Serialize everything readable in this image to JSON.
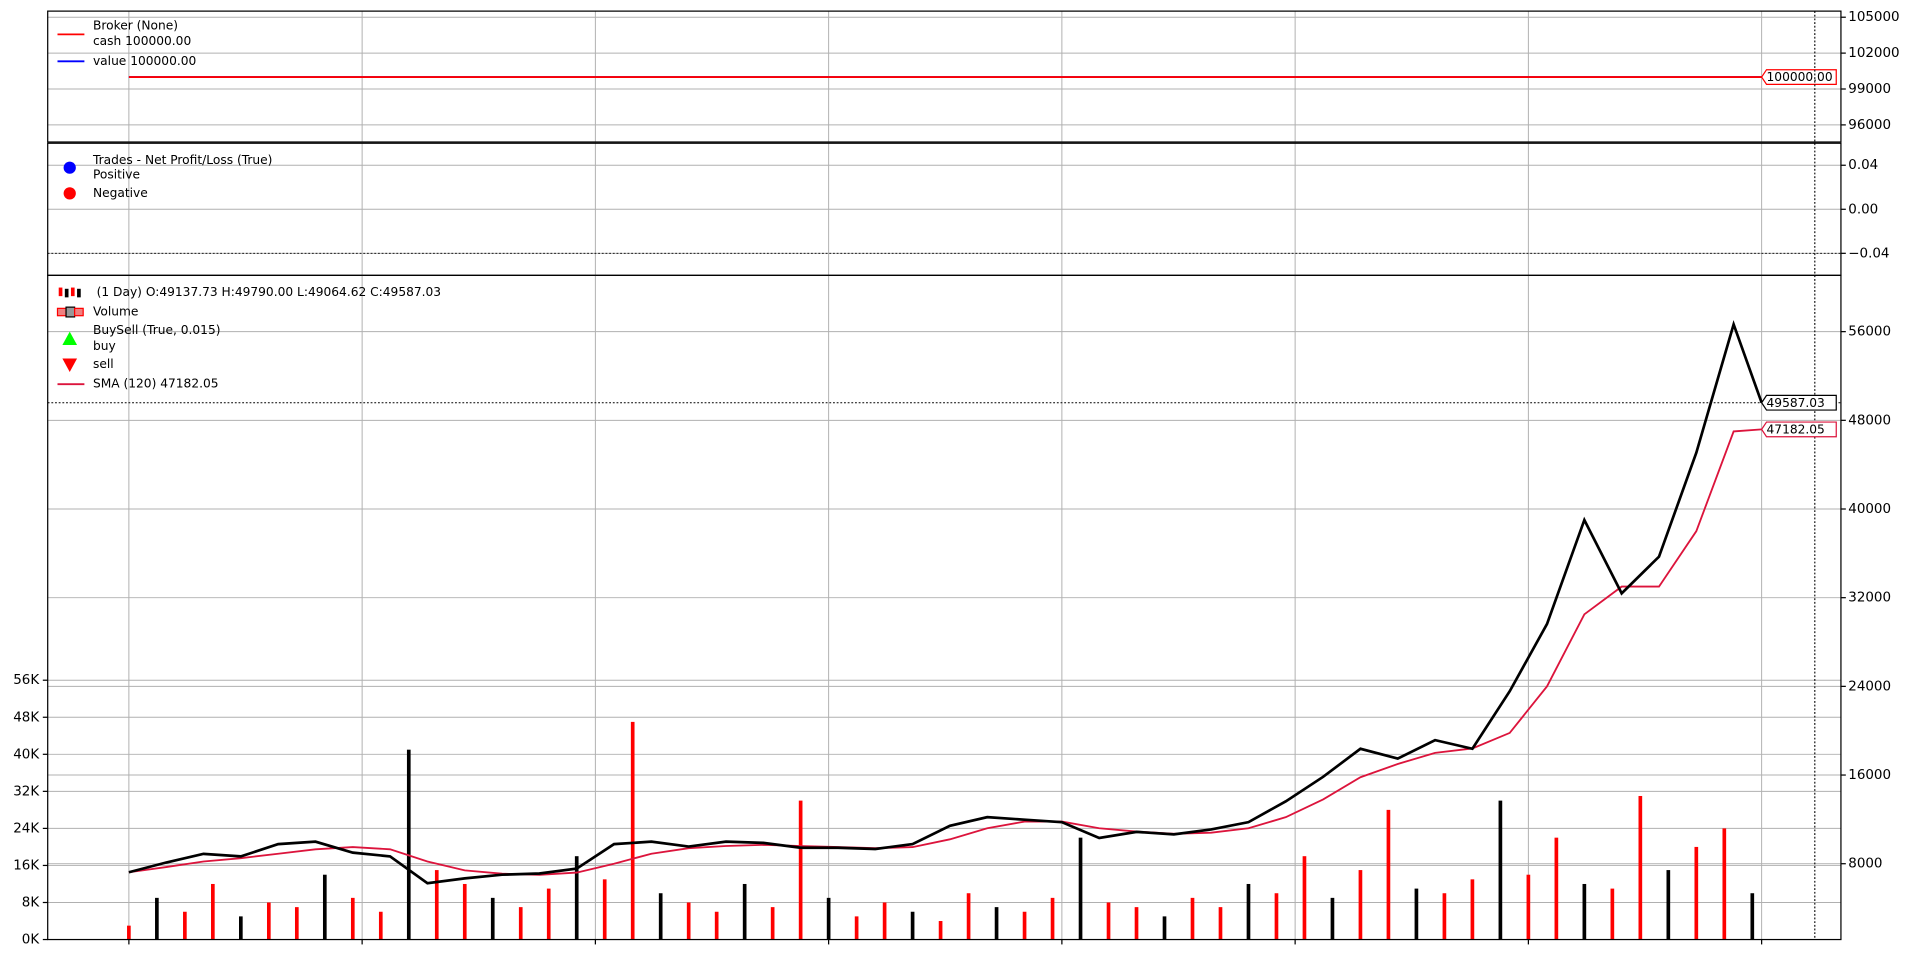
{
  "chart_data": [
    {
      "type": "line",
      "title": "Broker (None)",
      "x": [
        0,
        1750
      ],
      "xlim": [
        -87,
        1835
      ],
      "xticks": [
        0,
        250,
        500,
        750,
        1000,
        1250,
        1500,
        1750
      ],
      "ylim": [
        94570,
        105510
      ],
      "yticks": [
        96000,
        99000,
        102000,
        105000
      ],
      "grid": true,
      "series": [
        {
          "name": "cash 100000.00",
          "color": "#ff0000",
          "marker": "line",
          "values": [
            100000,
            100000
          ],
          "value_labels": [
            null,
            "100000.00"
          ]
        },
        {
          "name": "value 100000.00",
          "color": "#0000ff",
          "marker": "line",
          "values": [
            100000,
            100000
          ]
        }
      ]
    },
    {
      "type": "scatter",
      "title": "Trades - Net Profit/Loss (True)",
      "xlim": [
        -87,
        1835
      ],
      "xticks": [
        0,
        250,
        500,
        750,
        1000,
        1250,
        1500,
        1750
      ],
      "ylim": [
        -0.06,
        0.06
      ],
      "yticks": [
        {
          "value": -0.04,
          "label": "−0.04"
        },
        {
          "value": 0,
          "label": "0.00"
        },
        0.04
      ],
      "hlines": [
        -0.04
      ],
      "grid": true,
      "series": [
        {
          "name": "Positive",
          "color": "#0000ff",
          "marker": "circle",
          "values": []
        },
        {
          "name": "Negative",
          "color": "#ff0000",
          "marker": "circle",
          "values": []
        }
      ]
    },
    {
      "type": "line",
      "xlim": [
        -87,
        1835
      ],
      "xticks": [
        0,
        250,
        500,
        750,
        1000,
        1250,
        1500,
        1750
      ],
      "ylim": [
        1160,
        61080
      ],
      "yticks": [
        8000,
        16000,
        24000,
        32000,
        40000,
        48000,
        56000
      ],
      "y2lim": [
        0,
        143430
      ],
      "y2ticks": [
        {
          "value": 0,
          "label": "0K"
        },
        {
          "value": 8000,
          "label": "8K"
        },
        {
          "value": 16000,
          "label": "16K"
        },
        {
          "value": 24000,
          "label": "24K"
        },
        {
          "value": 32000,
          "label": "32K"
        },
        {
          "value": 40000,
          "label": "40K"
        },
        {
          "value": 48000,
          "label": "48K"
        },
        {
          "value": 56000,
          "label": "56K"
        }
      ],
      "grid": true,
      "vline": 1807,
      "close_line": true,
      "series": [
        {
          "name": "(1 Day) O:49137.73 H:49790.00 L:49064.62 C:49587.03",
          "color": "#000000",
          "marker": "candle",
          "x": [
            0,
            40,
            80,
            120,
            160,
            200,
            240,
            280,
            320,
            360,
            400,
            440,
            480,
            520,
            560,
            600,
            640,
            680,
            720,
            760,
            800,
            840,
            880,
            920,
            960,
            1000,
            1040,
            1080,
            1120,
            1160,
            1200,
            1240,
            1280,
            1320,
            1360,
            1400,
            1440,
            1480,
            1520,
            1560,
            1600,
            1640,
            1680,
            1720,
            1750
          ],
          "values": [
            7230,
            8110,
            8890,
            8660,
            9770,
            9990,
            9000,
            8660,
            6240,
            6680,
            7010,
            7120,
            7560,
            9770,
            9990,
            9550,
            9990,
            9880,
            9440,
            9440,
            9330,
            9770,
            11420,
            12200,
            11970,
            11750,
            10320,
            10870,
            10650,
            11090,
            11750,
            13630,
            15840,
            18370,
            17490,
            19150,
            18370,
            23560,
            29630,
            39010,
            32390,
            35700,
            45080,
            56660,
            49587.03
          ],
          "value_labels": [
            null,
            null,
            null,
            null,
            null,
            null,
            null,
            null,
            null,
            null,
            null,
            null,
            null,
            null,
            null,
            null,
            null,
            null,
            null,
            null,
            null,
            null,
            null,
            null,
            null,
            null,
            null,
            null,
            null,
            null,
            null,
            null,
            null,
            null,
            null,
            null,
            null,
            null,
            null,
            null,
            null,
            null,
            null,
            null,
            "49587.03"
          ]
        },
        {
          "name": "Volume",
          "color": "#ff0000",
          "marker": "bar",
          "axis": "y2",
          "x": [
            0,
            30,
            60,
            90,
            120,
            150,
            180,
            210,
            240,
            270,
            300,
            330,
            360,
            390,
            420,
            450,
            480,
            510,
            540,
            570,
            600,
            630,
            660,
            690,
            720,
            750,
            780,
            810,
            840,
            870,
            900,
            930,
            960,
            990,
            1020,
            1050,
            1080,
            1110,
            1140,
            1170,
            1200,
            1230,
            1260,
            1290,
            1320,
            1350,
            1380,
            1410,
            1440,
            1470,
            1500,
            1530,
            1560,
            1590,
            1620,
            1650,
            1680,
            1710,
            1740
          ],
          "values": [
            3000,
            9000,
            6000,
            12000,
            5000,
            8000,
            7000,
            14000,
            9000,
            6000,
            41000,
            15000,
            12000,
            9000,
            7000,
            11000,
            18000,
            13000,
            47000,
            10000,
            8000,
            6000,
            12000,
            7000,
            30000,
            9000,
            5000,
            8000,
            6000,
            4000,
            10000,
            7000,
            6000,
            9000,
            22000,
            8000,
            7000,
            5000,
            9000,
            7000,
            12000,
            10000,
            18000,
            9000,
            15000,
            28000,
            11000,
            10000,
            13000,
            30000,
            14000,
            22000,
            12000,
            11000,
            31000,
            15000,
            20000,
            24000,
            10000
          ]
        },
        {
          "name": "SMA (120) 47182.05",
          "color": "#dc143c",
          "marker": "line",
          "x": [
            0,
            40,
            80,
            120,
            160,
            200,
            240,
            280,
            320,
            360,
            400,
            440,
            480,
            520,
            560,
            600,
            640,
            680,
            720,
            760,
            800,
            840,
            880,
            920,
            960,
            1000,
            1040,
            1080,
            1120,
            1160,
            1200,
            1240,
            1280,
            1320,
            1360,
            1400,
            1440,
            1480,
            1520,
            1560,
            1600,
            1640,
            1680,
            1720,
            1750
          ],
          "values": [
            7230,
            7700,
            8200,
            8500,
            8900,
            9300,
            9500,
            9300,
            8200,
            7400,
            7100,
            7000,
            7200,
            8000,
            8900,
            9400,
            9600,
            9700,
            9600,
            9500,
            9400,
            9500,
            10200,
            11200,
            11800,
            11800,
            11200,
            10900,
            10700,
            10800,
            11200,
            12200,
            13800,
            15800,
            17000,
            18000,
            18400,
            19800,
            24000,
            30500,
            33000,
            33000,
            38000,
            47000,
            47182.05
          ],
          "value_labels": [
            null,
            null,
            null,
            null,
            null,
            null,
            null,
            null,
            null,
            null,
            null,
            null,
            null,
            null,
            null,
            null,
            null,
            null,
            null,
            null,
            null,
            null,
            null,
            null,
            null,
            null,
            null,
            null,
            null,
            null,
            null,
            null,
            null,
            null,
            null,
            null,
            null,
            null,
            null,
            null,
            null,
            null,
            null,
            null,
            "47182.05"
          ]
        }
      ],
      "buysell": {
        "name": "BuySell (True, 0.015)",
        "series": [
          {
            "name": "buy",
            "color": "#00ff00",
            "marker": "triangle-up",
            "values": []
          },
          {
            "name": "sell",
            "color": "#ff0000",
            "marker": "triangle-down",
            "values": []
          }
        ]
      }
    }
  ]
}
